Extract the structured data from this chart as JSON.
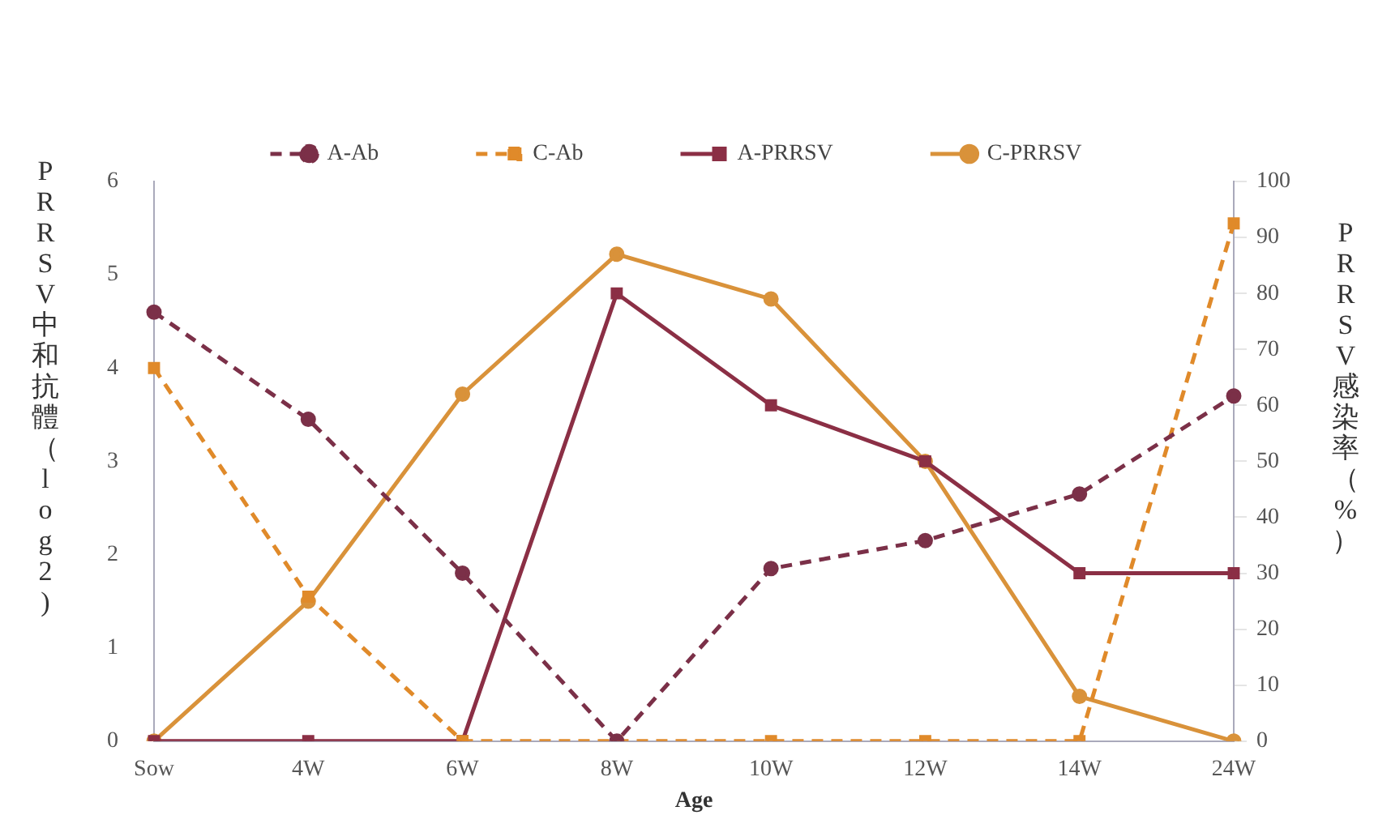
{
  "chart_data": {
    "type": "line",
    "xlabel": "Age",
    "ylabel": "PRRSV中和抗體（log2)",
    "y2label": "PRRSV感染率（%）",
    "categories": [
      "Sow",
      "4W",
      "6W",
      "8W",
      "10W",
      "12W",
      "14W",
      "24W"
    ],
    "series": [
      {
        "name": "A-Ab",
        "color": "#7b3048",
        "line_style": "dashed",
        "marker": "circle",
        "values": [
          4.6,
          3.45,
          1.8,
          0,
          1.85,
          2.15,
          2.65,
          3.7
        ]
      },
      {
        "name": "C-Ab",
        "color": "#e08a2a",
        "line_style": "dashed",
        "marker": "square",
        "values": [
          4.0,
          1.55,
          0,
          0,
          0,
          0,
          0,
          5.55
        ]
      },
      {
        "name": "A-PRRSV",
        "color": "#8b2f45",
        "line_style": "solid",
        "marker": "square",
        "axis": "y2",
        "values": [
          0,
          0,
          0,
          80,
          60,
          50,
          30,
          30
        ]
      },
      {
        "name": "C-PRRSV",
        "color": "#d9923a",
        "line_style": "solid",
        "marker": "circle",
        "axis": "y2",
        "values": [
          0,
          25,
          62,
          87,
          79,
          50,
          8,
          0
        ]
      }
    ],
    "ylim": [
      0,
      6
    ],
    "yticks": [
      0,
      1,
      2,
      3,
      4,
      5,
      6
    ],
    "y2lim": [
      0,
      100
    ],
    "y2ticks": [
      0,
      10,
      20,
      30,
      40,
      50,
      60,
      70,
      80,
      90,
      100
    ],
    "grid": false,
    "legend": "top"
  }
}
